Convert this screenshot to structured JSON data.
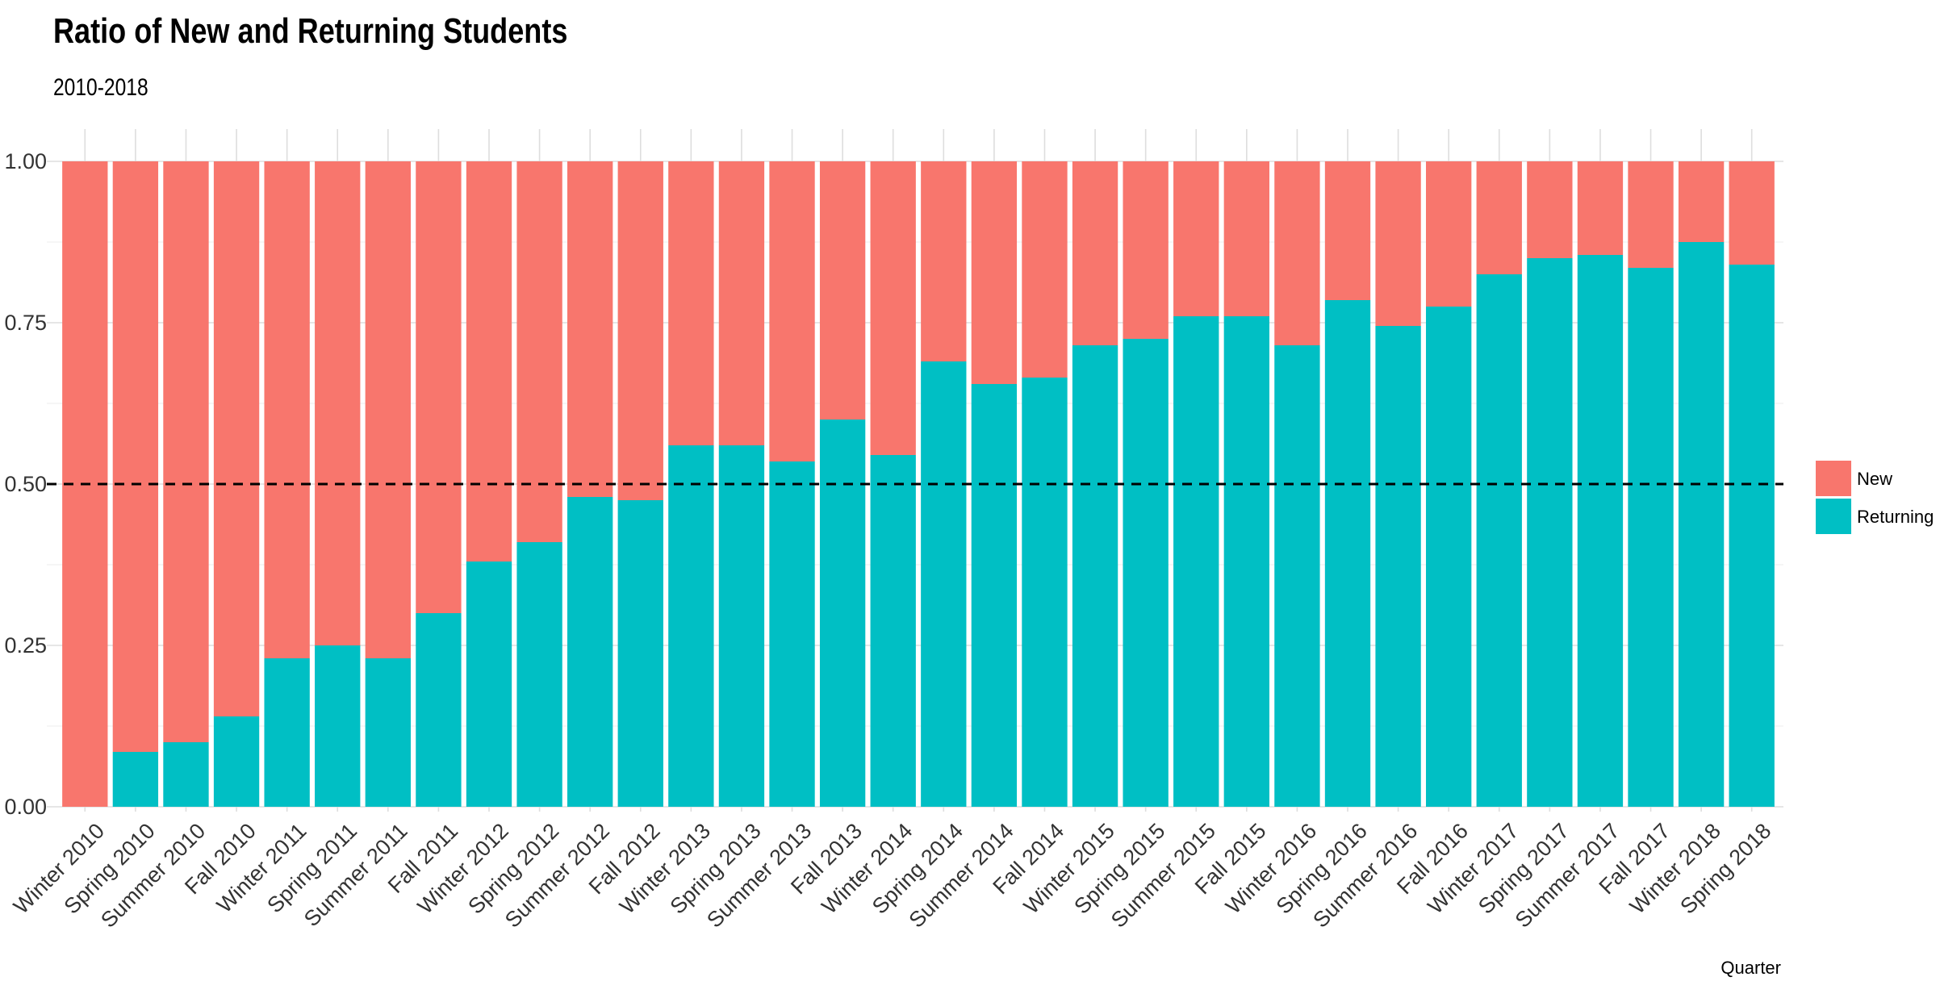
{
  "chart_data": {
    "type": "bar",
    "stacked": true,
    "title": "Ratio of New and Returning Students",
    "subtitle": "2010-2018",
    "xlabel": "Quarter",
    "ylabel": "",
    "ylim": [
      0,
      1
    ],
    "yticks": [
      "0.00",
      "0.25",
      "0.50",
      "0.75",
      "1.00"
    ],
    "grid": true,
    "legend_position": "right",
    "reference_line": {
      "y": 0.5,
      "style": "dashed",
      "color": "#000000"
    },
    "categories": [
      "Winter 2010",
      "Spring 2010",
      "Summer 2010",
      "Fall 2010",
      "Winter 2011",
      "Spring 2011",
      "Summer 2011",
      "Fall 2011",
      "Winter 2012",
      "Spring 2012",
      "Summer 2012",
      "Fall 2012",
      "Winter 2013",
      "Spring 2013",
      "Summer 2013",
      "Fall 2013",
      "Winter 2014",
      "Spring 2014",
      "Summer 2014",
      "Fall 2014",
      "Winter 2015",
      "Spring 2015",
      "Summer 2015",
      "Fall 2015",
      "Winter 2016",
      "Spring 2016",
      "Summer 2016",
      "Fall 2016",
      "Winter 2017",
      "Spring 2017",
      "Summer 2017",
      "Fall 2017",
      "Winter 2018",
      "Spring 2018"
    ],
    "series": [
      {
        "name": "Returning",
        "color": "#00BFC4",
        "values": [
          0.0,
          0.085,
          0.1,
          0.14,
          0.23,
          0.25,
          0.23,
          0.3,
          0.38,
          0.41,
          0.48,
          0.475,
          0.56,
          0.56,
          0.535,
          0.6,
          0.545,
          0.69,
          0.655,
          0.665,
          0.715,
          0.725,
          0.76,
          0.76,
          0.715,
          0.785,
          0.745,
          0.775,
          0.825,
          0.85,
          0.855,
          0.835,
          0.875,
          0.84
        ]
      },
      {
        "name": "New",
        "color": "#F8766D",
        "values": [
          1.0,
          0.915,
          0.9,
          0.86,
          0.77,
          0.75,
          0.77,
          0.7,
          0.62,
          0.59,
          0.52,
          0.525,
          0.44,
          0.44,
          0.465,
          0.4,
          0.455,
          0.31,
          0.345,
          0.335,
          0.285,
          0.275,
          0.24,
          0.24,
          0.285,
          0.215,
          0.255,
          0.225,
          0.175,
          0.15,
          0.145,
          0.165,
          0.125,
          0.16
        ]
      }
    ],
    "legend": [
      "New",
      "Returning"
    ]
  }
}
